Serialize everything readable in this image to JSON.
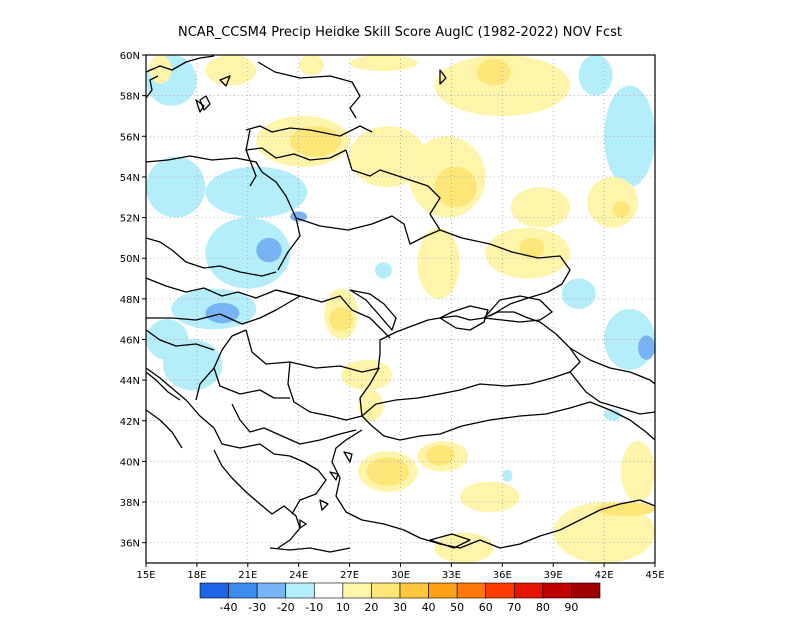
{
  "title": "NCAR_CCSM4 Precip Heidke Skill Score AugIC (1982-2022) NOV Fcst",
  "map": {
    "lon_range": [
      15,
      45
    ],
    "lat_range": [
      35,
      60
    ],
    "lon_ticks": [
      {
        "value": 15,
        "label": "15E"
      },
      {
        "value": 18,
        "label": "18E"
      },
      {
        "value": 21,
        "label": "21E"
      },
      {
        "value": 24,
        "label": "24E"
      },
      {
        "value": 27,
        "label": "27E"
      },
      {
        "value": 30,
        "label": "30E"
      },
      {
        "value": 33,
        "label": "33E"
      },
      {
        "value": 36,
        "label": "36E"
      },
      {
        "value": 39,
        "label": "39E"
      },
      {
        "value": 42,
        "label": "42E"
      },
      {
        "value": 45,
        "label": "45E"
      }
    ],
    "lat_ticks": [
      {
        "value": 36,
        "label": "36N"
      },
      {
        "value": 38,
        "label": "38N"
      },
      {
        "value": 40,
        "label": "40N"
      },
      {
        "value": 42,
        "label": "42N"
      },
      {
        "value": 44,
        "label": "44N"
      },
      {
        "value": 46,
        "label": "46N"
      },
      {
        "value": 48,
        "label": "48N"
      },
      {
        "value": 50,
        "label": "50N"
      },
      {
        "value": 52,
        "label": "52N"
      },
      {
        "value": 54,
        "label": "54N"
      },
      {
        "value": 56,
        "label": "56N"
      },
      {
        "value": 58,
        "label": "58N"
      },
      {
        "value": 60,
        "label": "60N"
      }
    ],
    "grid": true
  },
  "colorbar": {
    "colors": [
      "#1e64e6",
      "#3c8cf0",
      "#78b4f5",
      "#b4eefa",
      "#ffffff",
      "#fff5aa",
      "#ffe678",
      "#ffc83c",
      "#ffa014",
      "#ff780a",
      "#ff3c00",
      "#e61400",
      "#c00000",
      "#a00000"
    ],
    "labels": [
      "-40",
      "-30",
      "-20",
      "-10",
      "10",
      "20",
      "30",
      "40",
      "50",
      "60",
      "70",
      "80",
      "90"
    ]
  },
  "chart_data": {
    "type": "heatmap",
    "title": "NCAR_CCSM4 Precip Heidke Skill Score AugIC (1982-2022) NOV Fcst",
    "x_range": [
      15,
      45
    ],
    "y_range": [
      35,
      60
    ],
    "levels": [
      -40,
      -30,
      -20,
      -10,
      10,
      20,
      30,
      40,
      50,
      60,
      70,
      80,
      90
    ],
    "regions": [
      {
        "level": -15,
        "lon": [
          15.0,
          18.0
        ],
        "lat": [
          57.5,
          60.0
        ]
      },
      {
        "level": 15,
        "lon": [
          15.2,
          16.5
        ],
        "lat": [
          58.6,
          60.0
        ]
      },
      {
        "level": 15,
        "lon": [
          18.5,
          21.5
        ],
        "lat": [
          58.5,
          60.0
        ]
      },
      {
        "level": 15,
        "lon": [
          24.0,
          25.5
        ],
        "lat": [
          59.0,
          60.0
        ]
      },
      {
        "level": 15,
        "lon": [
          27.0,
          31.0
        ],
        "lat": [
          59.2,
          60.0
        ]
      },
      {
        "level": 15,
        "lon": [
          32.0,
          40.0
        ],
        "lat": [
          57.0,
          60.0
        ]
      },
      {
        "level": 25,
        "lon": [
          34.5,
          36.5
        ],
        "lat": [
          58.5,
          59.8
        ]
      },
      {
        "level": -15,
        "lon": [
          40.5,
          42.5
        ],
        "lat": [
          58.0,
          60.0
        ]
      },
      {
        "level": -15,
        "lon": [
          42.0,
          45.0
        ],
        "lat": [
          53.5,
          58.5
        ]
      },
      {
        "level": 15,
        "lon": [
          21.5,
          27.0
        ],
        "lat": [
          54.5,
          57.0
        ]
      },
      {
        "level": 25,
        "lon": [
          23.5,
          26.5
        ],
        "lat": [
          55.0,
          56.5
        ]
      },
      {
        "level": 15,
        "lon": [
          27.0,
          31.5
        ],
        "lat": [
          53.5,
          56.5
        ]
      },
      {
        "level": 15,
        "lon": [
          30.5,
          35.0
        ],
        "lat": [
          52.0,
          56.0
        ]
      },
      {
        "level": 25,
        "lon": [
          32.0,
          34.5
        ],
        "lat": [
          52.5,
          54.5
        ]
      },
      {
        "level": 15,
        "lon": [
          36.5,
          40.0
        ],
        "lat": [
          51.5,
          53.5
        ]
      },
      {
        "level": 15,
        "lon": [
          41.0,
          44.0
        ],
        "lat": [
          51.5,
          54.0
        ]
      },
      {
        "level": 25,
        "lon": [
          42.5,
          43.5
        ],
        "lat": [
          52.0,
          52.8
        ]
      },
      {
        "level": -15,
        "lon": [
          15.0,
          18.5
        ],
        "lat": [
          52.0,
          55.0
        ]
      },
      {
        "level": -15,
        "lon": [
          18.5,
          24.5
        ],
        "lat": [
          52.0,
          54.5
        ]
      },
      {
        "level": -15,
        "lon": [
          18.5,
          23.5
        ],
        "lat": [
          48.5,
          52.0
        ]
      },
      {
        "level": -25,
        "lon": [
          21.5,
          23.0
        ],
        "lat": [
          49.8,
          51.0
        ]
      },
      {
        "level": -25,
        "lon": [
          23.5,
          24.5
        ],
        "lat": [
          51.8,
          52.3
        ]
      },
      {
        "level": -15,
        "lon": [
          16.5,
          21.5
        ],
        "lat": [
          46.5,
          48.5
        ]
      },
      {
        "level": -25,
        "lon": [
          18.5,
          20.5
        ],
        "lat": [
          46.8,
          47.8
        ]
      },
      {
        "level": -15,
        "lon": [
          15.0,
          17.5
        ],
        "lat": [
          45.0,
          47.0
        ]
      },
      {
        "level": -15,
        "lon": [
          16.0,
          19.5
        ],
        "lat": [
          43.5,
          46.0
        ]
      },
      {
        "level": 15,
        "lon": [
          25.5,
          27.5
        ],
        "lat": [
          46.0,
          48.5
        ]
      },
      {
        "level": 25,
        "lon": [
          25.8,
          27.2
        ],
        "lat": [
          46.4,
          47.6
        ]
      },
      {
        "level": 15,
        "lon": [
          31.0,
          33.5
        ],
        "lat": [
          48.0,
          51.5
        ]
      },
      {
        "level": 15,
        "lon": [
          35.0,
          40.0
        ],
        "lat": [
          49.0,
          51.5
        ]
      },
      {
        "level": 25,
        "lon": [
          37.0,
          38.5
        ],
        "lat": [
          50.0,
          51.0
        ]
      },
      {
        "level": -15,
        "lon": [
          28.5,
          29.5
        ],
        "lat": [
          49.0,
          49.8
        ]
      },
      {
        "level": -15,
        "lon": [
          39.5,
          41.5
        ],
        "lat": [
          47.5,
          49.0
        ]
      },
      {
        "level": -15,
        "lon": [
          42.0,
          45.0
        ],
        "lat": [
          44.5,
          47.5
        ]
      },
      {
        "level": -25,
        "lon": [
          44.0,
          45.0
        ],
        "lat": [
          45.0,
          46.2
        ]
      },
      {
        "level": 15,
        "lon": [
          26.5,
          29.5
        ],
        "lat": [
          43.5,
          45.0
        ]
      },
      {
        "level": 15,
        "lon": [
          27.5,
          29.0
        ],
        "lat": [
          42.0,
          43.5
        ]
      },
      {
        "level": 15,
        "lon": [
          27.5,
          31.0
        ],
        "lat": [
          38.5,
          40.5
        ]
      },
      {
        "level": 25,
        "lon": [
          28.0,
          30.5
        ],
        "lat": [
          38.8,
          40.2
        ]
      },
      {
        "level": 15,
        "lon": [
          31.0,
          34.0
        ],
        "lat": [
          39.5,
          41.0
        ]
      },
      {
        "level": 25,
        "lon": [
          31.5,
          33.2
        ],
        "lat": [
          39.8,
          40.8
        ]
      },
      {
        "level": 15,
        "lon": [
          33.5,
          37.0
        ],
        "lat": [
          37.5,
          39.0
        ]
      },
      {
        "level": 15,
        "lon": [
          32.0,
          35.5
        ],
        "lat": [
          35.0,
          36.5
        ]
      },
      {
        "level": 15,
        "lon": [
          39.0,
          45.0
        ],
        "lat": [
          35.0,
          38.0
        ]
      },
      {
        "level": 25,
        "lon": [
          41.5,
          45.0
        ],
        "lat": [
          37.3,
          38.0
        ]
      },
      {
        "level": 15,
        "lon": [
          43.0,
          45.0
        ],
        "lat": [
          38.0,
          41.0
        ]
      },
      {
        "level": -15,
        "lon": [
          42.0,
          43.0
        ],
        "lat": [
          42.0,
          42.6
        ]
      },
      {
        "level": -15,
        "lon": [
          36.0,
          36.6
        ],
        "lat": [
          39.0,
          39.6
        ]
      }
    ]
  }
}
